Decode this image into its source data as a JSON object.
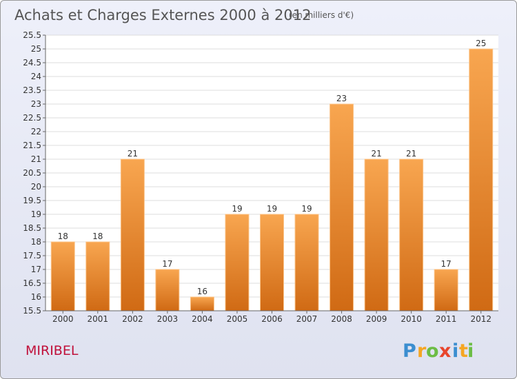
{
  "chart_data": {
    "type": "bar",
    "title": "Achats et Charges Externes 2000 à 2012",
    "subtitle": "(en milliers d'€)",
    "categories": [
      "2000",
      "2001",
      "2002",
      "2003",
      "2004",
      "2005",
      "2006",
      "2007",
      "2008",
      "2009",
      "2010",
      "2011",
      "2012"
    ],
    "values": [
      18,
      18,
      21,
      17,
      16,
      19,
      19,
      19,
      23,
      21,
      21,
      17,
      25
    ],
    "ylim": [
      15.5,
      25.5
    ],
    "yticks": [
      "15.5",
      "16",
      "16.5",
      "17",
      "17.5",
      "18",
      "18.5",
      "19",
      "19.5",
      "20",
      "20.5",
      "21",
      "21.5",
      "22",
      "22.5",
      "23",
      "23.5",
      "24",
      "24.5",
      "25",
      "25.5"
    ],
    "grid": true,
    "bar_color": "#f5a34e"
  },
  "place": "MIRIBEL",
  "logo": {
    "letters": [
      "P",
      "r",
      "o",
      "x",
      "i",
      "t",
      "i"
    ],
    "colors": [
      "#3b8ed0",
      "#f5a623",
      "#6cbd45",
      "#e8452c",
      "#3b8ed0",
      "#f5a623",
      "#6cbd45"
    ]
  }
}
